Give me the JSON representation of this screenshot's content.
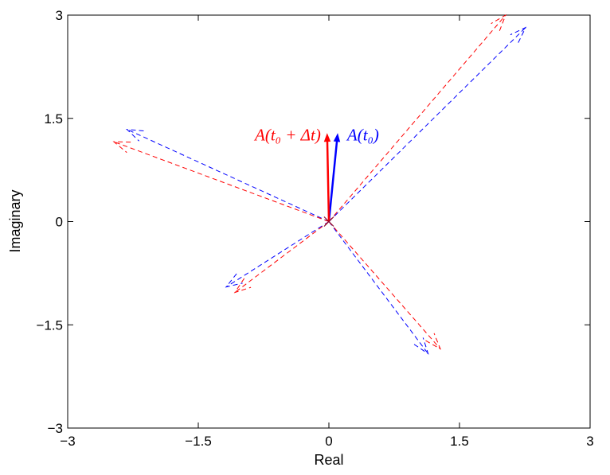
{
  "chart_data": {
    "type": "scatter",
    "xlabel": "Real",
    "ylabel": "Imaginary",
    "xlim": [
      -3,
      3
    ],
    "ylim": [
      -3,
      3
    ],
    "x_ticks": [
      -3,
      -1.5,
      0,
      1.5,
      3
    ],
    "y_ticks": [
      -3,
      -1.5,
      0,
      1.5,
      3
    ],
    "x_tick_labels": [
      "−3",
      "−1.5",
      "0",
      "1.5",
      "3"
    ],
    "y_tick_labels": [
      "−3",
      "−1.5",
      "0",
      "1.5",
      "3"
    ],
    "grid": false,
    "origin_marker": "x",
    "series": [
      {
        "name": "A(t₀)",
        "color": "#0000ff",
        "solid_vector": [
          0.1,
          1.27
        ],
        "dashed_vectors": [
          [
            2.26,
            2.82
          ],
          [
            -2.32,
            1.34
          ],
          [
            -1.18,
            -0.95
          ],
          [
            1.14,
            -1.92
          ]
        ]
      },
      {
        "name": "A(t₀ + Δt)",
        "color": "#ff0000",
        "solid_vector": [
          -0.02,
          1.27
        ],
        "dashed_vectors": [
          [
            2.03,
            3.0
          ],
          [
            -2.47,
            1.16
          ],
          [
            -1.08,
            -1.03
          ],
          [
            1.28,
            -1.85
          ]
        ]
      }
    ]
  }
}
